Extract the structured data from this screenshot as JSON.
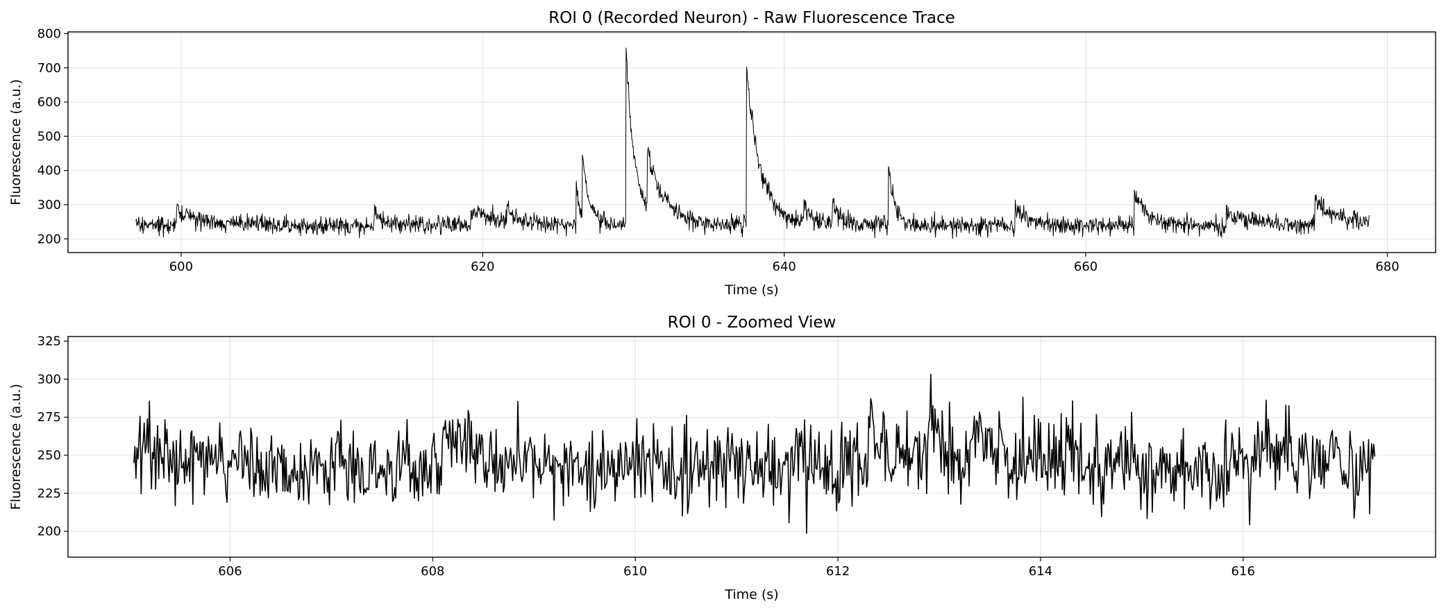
{
  "chart_data": [
    {
      "type": "line",
      "title": "ROI 0 (Recorded Neuron) - Raw Fluorescence Trace",
      "xlabel": "Time (s)",
      "ylabel": "Fluorescence (a.u.)",
      "xlim": [
        592.5,
        683.2
      ],
      "ylim": [
        160,
        805
      ],
      "xticks": [
        600,
        620,
        640,
        660,
        680
      ],
      "yticks": [
        200,
        300,
        400,
        500,
        600,
        700,
        800
      ],
      "grid": true,
      "color": "#000000",
      "x_range": [
        597.0,
        678.8
      ],
      "baseline": 240,
      "noise": 13,
      "events": [
        {
          "t": 599.7,
          "amp": 45,
          "tau": 1.5
        },
        {
          "t": 612.8,
          "amp": 50,
          "tau": 0.4
        },
        {
          "t": 619.2,
          "amp": 45,
          "tau": 2.0
        },
        {
          "t": 621.6,
          "amp": 45,
          "tau": 0.6
        },
        {
          "t": 626.2,
          "amp": 120,
          "tau": 0.25
        },
        {
          "t": 626.6,
          "amp": 190,
          "tau": 0.5
        },
        {
          "t": 629.5,
          "amp": 520,
          "tau": 0.6
        },
        {
          "t": 630.9,
          "amp": 180,
          "tau": 1.2
        },
        {
          "t": 637.5,
          "amp": 470,
          "tau": 0.9
        },
        {
          "t": 641.3,
          "amp": 60,
          "tau": 0.5
        },
        {
          "t": 643.2,
          "amp": 70,
          "tau": 0.6
        },
        {
          "t": 646.9,
          "amp": 180,
          "tau": 0.4
        },
        {
          "t": 655.3,
          "amp": 60,
          "tau": 0.8
        },
        {
          "t": 663.2,
          "amp": 100,
          "tau": 0.8
        },
        {
          "t": 669.3,
          "amp": 40,
          "tau": 1.5
        },
        {
          "t": 675.2,
          "amp": 70,
          "tau": 1.5
        }
      ]
    },
    {
      "type": "line",
      "title": "ROI 0 - Zoomed View",
      "xlabel": "Time (s)",
      "ylabel": "Fluorescence (a.u.)",
      "xlim": [
        604.4,
        617.9
      ],
      "ylim": [
        183,
        328
      ],
      "xticks": [
        606,
        608,
        610,
        612,
        614,
        616
      ],
      "yticks": [
        200,
        225,
        250,
        275,
        300,
        325
      ],
      "grid": true,
      "color": "#000000",
      "x_range": [
        605.05,
        617.3
      ],
      "baseline": 242,
      "noise": 14,
      "events": [
        {
          "t": 605.1,
          "amp": 20,
          "tau": 0.3
        },
        {
          "t": 608.1,
          "amp": 25,
          "tau": 0.4
        },
        {
          "t": 612.3,
          "amp": 30,
          "tau": 0.2
        },
        {
          "t": 612.9,
          "amp": 60,
          "tau": 0.1
        },
        {
          "t": 613.3,
          "amp": 25,
          "tau": 0.3
        },
        {
          "t": 616.1,
          "amp": 20,
          "tau": 0.5
        }
      ]
    }
  ]
}
